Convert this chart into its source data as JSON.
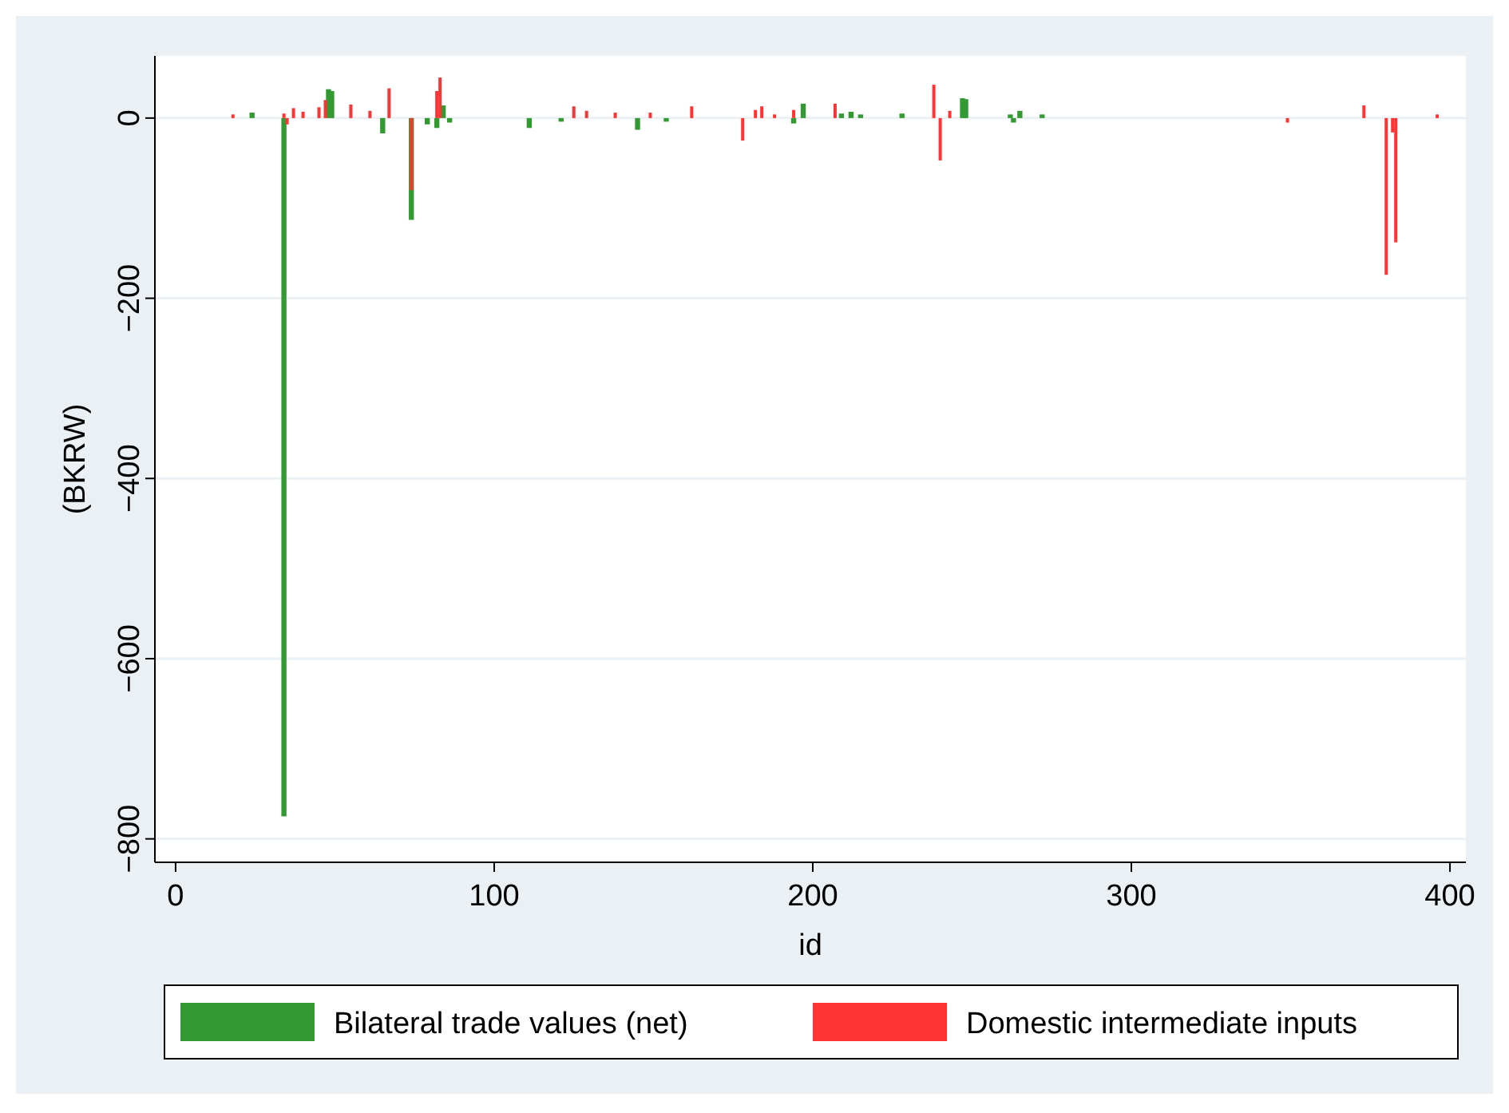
{
  "chart_data": {
    "type": "bar",
    "xlabel": "id",
    "ylabel": "(BKRW)",
    "xlim": [
      -6.5,
      405
    ],
    "ylim": [
      -826,
      69
    ],
    "xticks": [
      0,
      100,
      200,
      300,
      400
    ],
    "yticks": [
      0,
      -200,
      -400,
      -600,
      -800
    ],
    "grid": "y",
    "legend": "bottom",
    "series": [
      {
        "name": "Bilateral trade values (net)",
        "color": "#339933",
        "x": [
          24,
          34,
          48,
          49,
          65,
          74,
          79,
          82,
          84,
          86,
          111,
          121,
          145,
          154,
          194,
          197,
          209,
          212,
          215,
          228,
          247,
          248,
          262,
          263,
          265,
          272
        ],
        "values": [
          6,
          -775,
          32,
          30,
          -17,
          -113,
          -7,
          -11,
          14,
          -5,
          -11,
          -4,
          -13,
          -4,
          -6,
          16,
          5,
          7,
          4,
          5,
          22,
          21,
          4,
          -5,
          8,
          4
        ]
      },
      {
        "name": "Domestic intermediate inputs",
        "color": "#ff3333",
        "x": [
          18,
          34,
          35,
          37,
          40,
          45,
          47,
          55,
          61,
          67,
          74,
          82,
          83,
          125,
          129,
          138,
          149,
          162,
          178,
          182,
          184,
          188,
          194,
          207,
          238,
          240,
          243,
          349,
          373,
          380,
          382,
          383,
          396
        ],
        "values": [
          4,
          5,
          -7,
          11,
          7,
          12,
          20,
          15,
          8,
          33,
          -80,
          30,
          45,
          13,
          8,
          6,
          6,
          13,
          -25,
          9,
          13,
          4,
          9,
          16,
          37,
          -47,
          8,
          -5,
          14,
          -174,
          -16,
          -138,
          4
        ]
      }
    ]
  }
}
